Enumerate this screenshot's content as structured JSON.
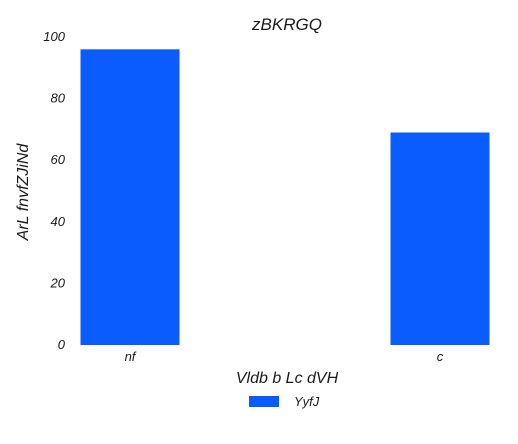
{
  "chart_data": {
    "type": "bar",
    "title": "zBKRGQ",
    "xlabel": "Vldb b  Lc dVH",
    "ylabel": "ArL fnvfZJiNd",
    "categories": [
      "nf",
      "c"
    ],
    "series": [
      {
        "name": "YyfJ",
        "values": [
          96,
          69
        ],
        "color": "#0a5cff"
      }
    ],
    "ylim": [
      0,
      100
    ],
    "yticks": [
      0,
      20,
      40,
      60,
      80,
      100
    ],
    "grid": false,
    "legend": "bottom-center"
  }
}
